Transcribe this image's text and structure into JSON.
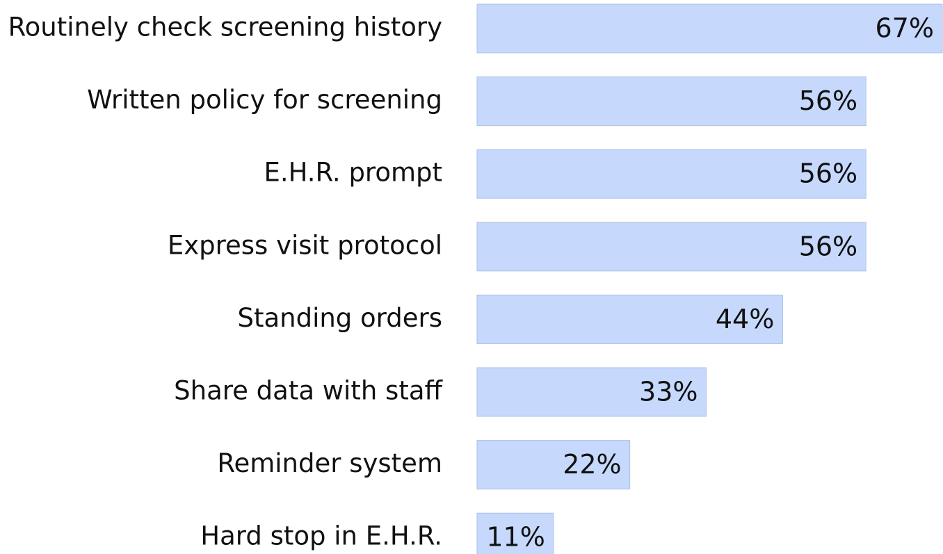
{
  "chart_data": {
    "type": "bar",
    "orientation": "horizontal",
    "categories": [
      "Routinely check screening history",
      "Written policy for screening",
      "E.H.R. prompt",
      "Express visit protocol",
      "Standing orders",
      "Share data with staff",
      "Reminder system",
      "Hard stop in E.H.R."
    ],
    "values": [
      67,
      56,
      56,
      56,
      44,
      33,
      22,
      11
    ],
    "value_labels": [
      "67%",
      "56%",
      "56%",
      "56%",
      "44%",
      "33%",
      "22%",
      "11%"
    ],
    "color": "#c6d9fc"
  }
}
